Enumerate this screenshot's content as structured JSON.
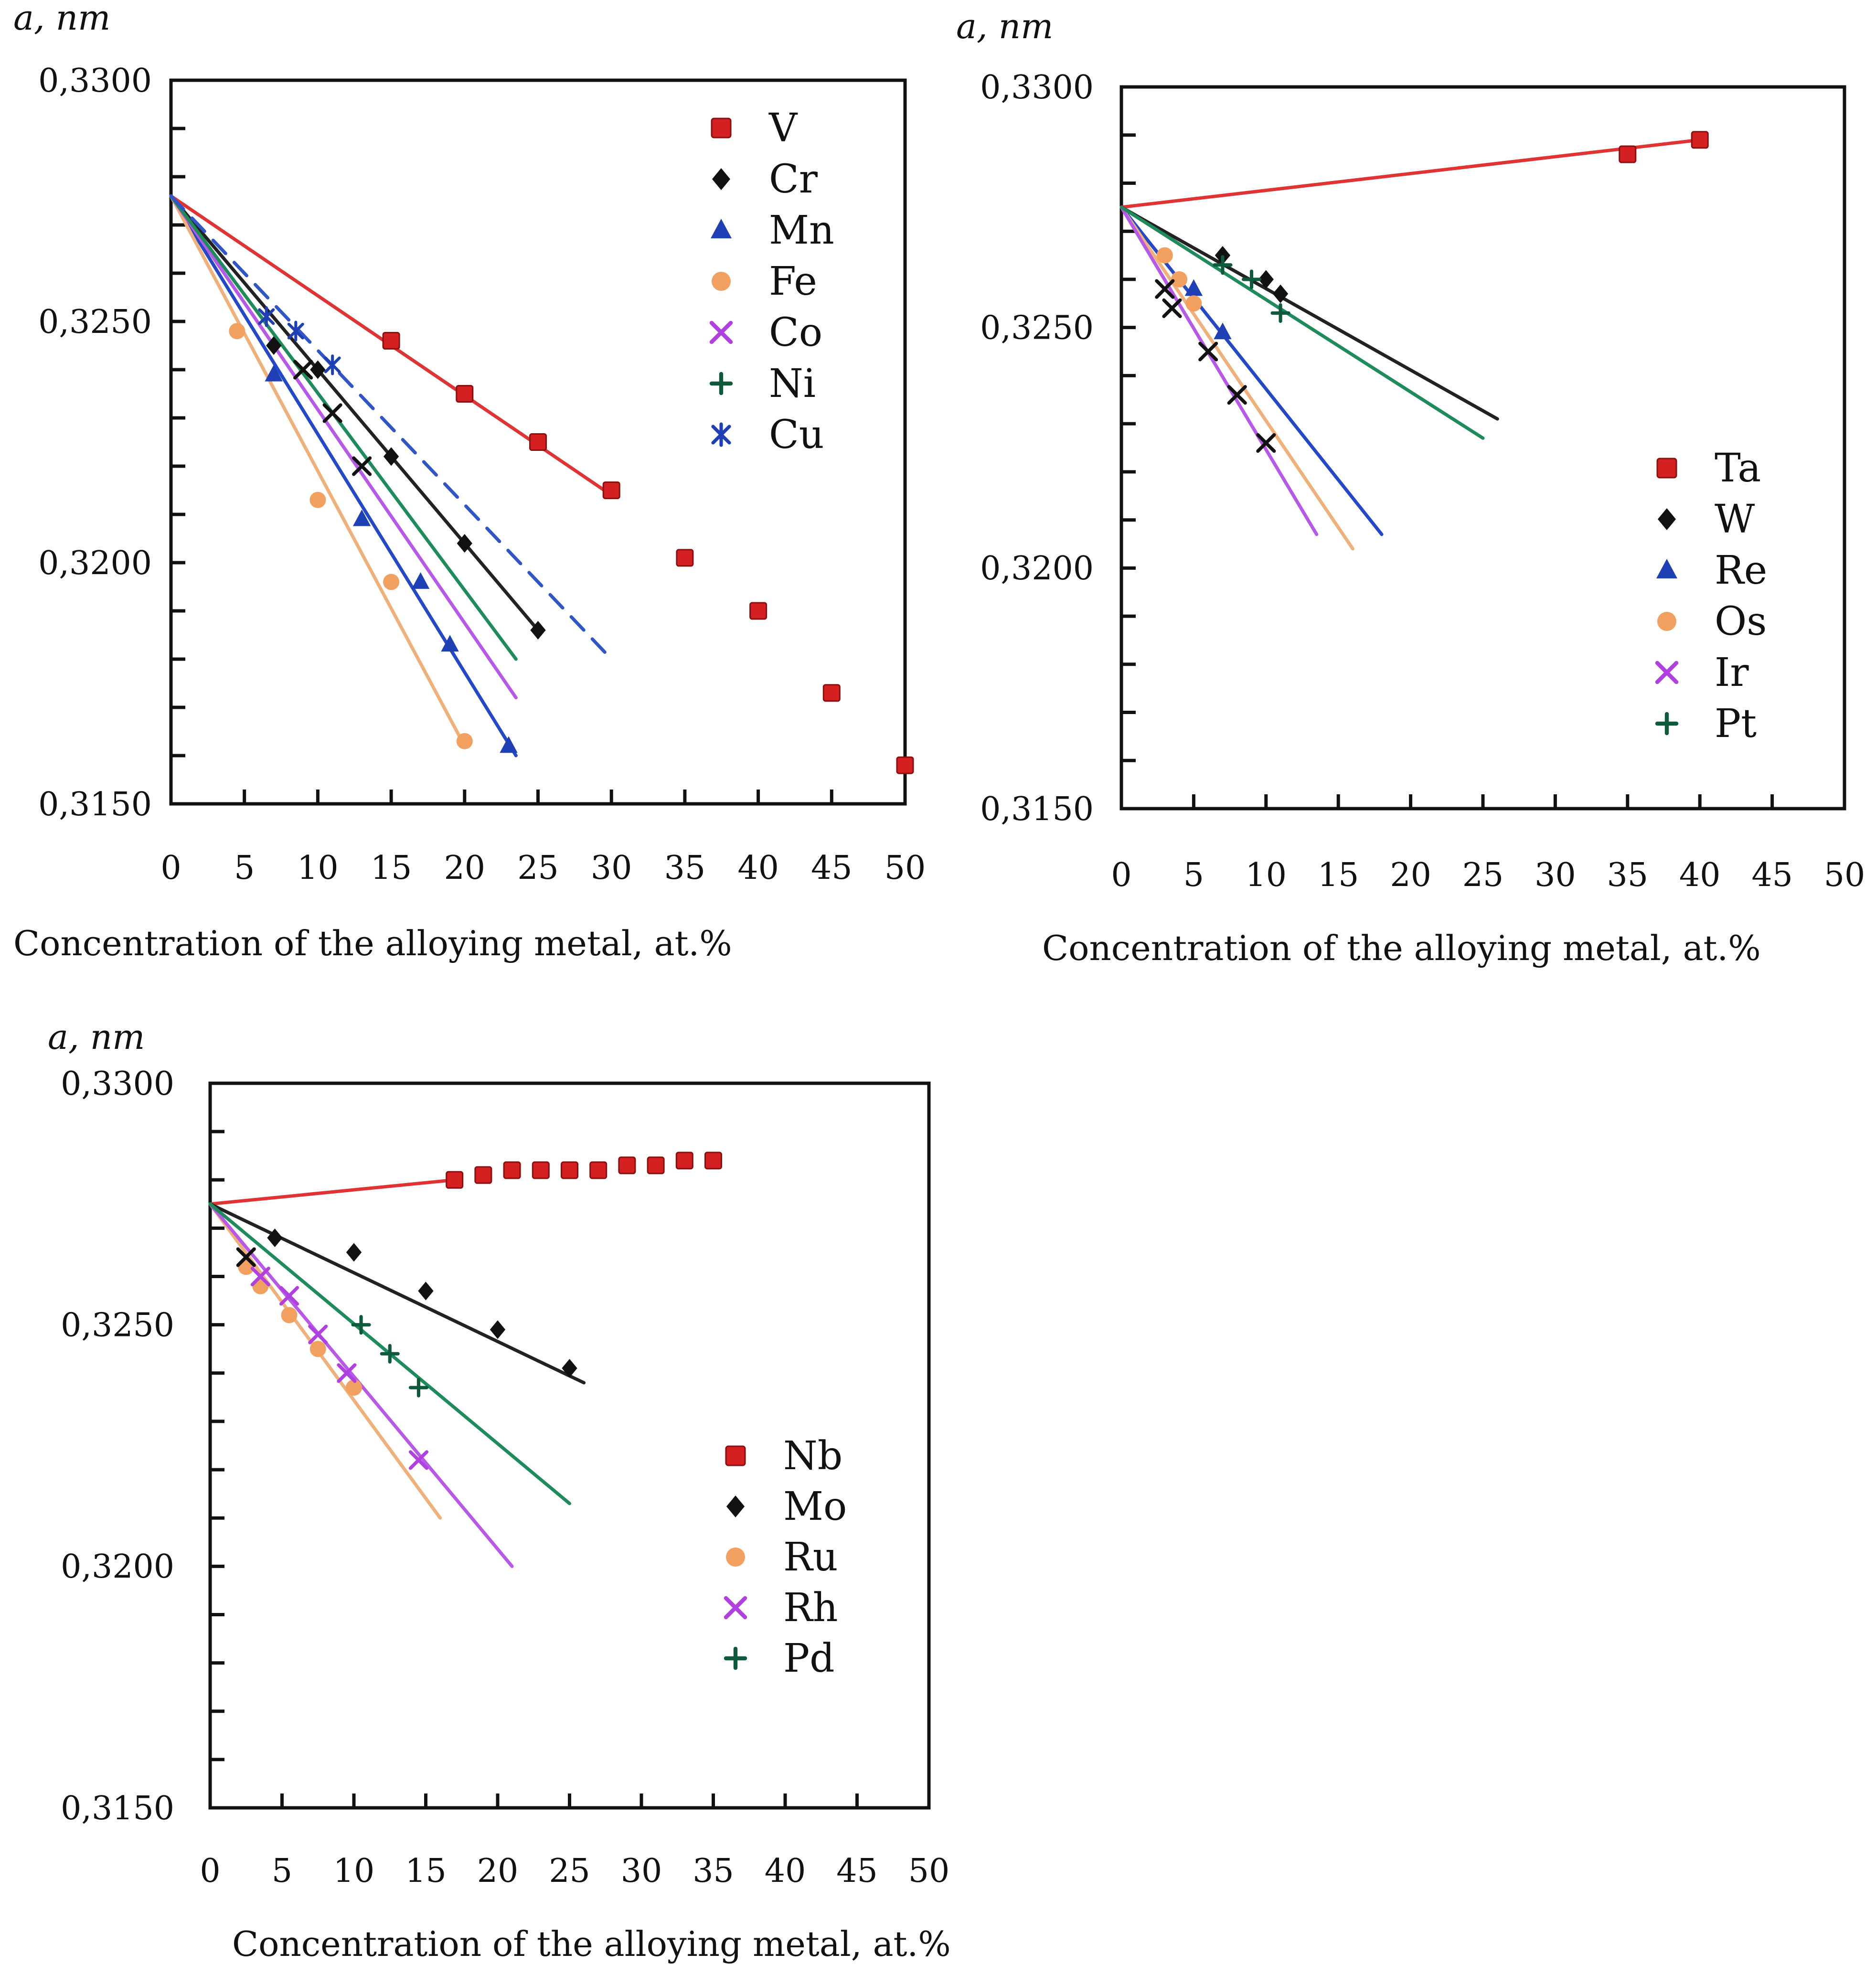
{
  "chart_data": [
    {
      "type": "scatter",
      "panel": "top-left",
      "ylabel": "a, nm",
      "xlabel": "Concentration of the alloying metal, at.%",
      "xlim": [
        0,
        50
      ],
      "ylim": [
        0.315,
        0.33
      ],
      "x_ticks": [
        0,
        5,
        10,
        15,
        20,
        25,
        30,
        35,
        40,
        45,
        50
      ],
      "x_tick_labels": [
        "0",
        "5",
        "10",
        "15",
        "20",
        "25",
        "30",
        "35",
        "40",
        "45",
        "50"
      ],
      "y_tick_values": [
        0.315,
        0.32,
        0.325,
        0.33
      ],
      "y_tick_labels": [
        "0,3150",
        "0,3200",
        "0,3250",
        "0,3300"
      ],
      "y_minor_step": 0.001,
      "legend_position": "top-right",
      "series": [
        {
          "name": "V",
          "marker": "square",
          "color": "#d42020",
          "line_color": "#e03434",
          "line": [
            [
              0,
              0.3276
            ],
            [
              30,
              0.3214
            ]
          ],
          "x": [
            15,
            20,
            25,
            30,
            35,
            40,
            45,
            50
          ],
          "y": [
            0.3246,
            0.3235,
            0.3225,
            0.3215,
            0.3201,
            0.319,
            0.3173,
            0.3158
          ]
        },
        {
          "name": "Cr",
          "marker": "diamond",
          "color": "#111111",
          "line_color": "#222222",
          "line": [
            [
              0,
              0.3276
            ],
            [
              25,
              0.3186
            ]
          ],
          "x": [
            7,
            10,
            15,
            20,
            25
          ],
          "y": [
            0.3245,
            0.324,
            0.3222,
            0.3204,
            0.3186
          ]
        },
        {
          "name": "Mn",
          "marker": "triangle",
          "color": "#1f3fb4",
          "line_color": "#2348c8",
          "line": [
            [
              0,
              0.3276
            ],
            [
              23.5,
              0.316
            ]
          ],
          "x": [
            7,
            13,
            17,
            19,
            23
          ],
          "y": [
            0.3239,
            0.3209,
            0.3196,
            0.3183,
            0.3162
          ]
        },
        {
          "name": "Fe",
          "marker": "circle",
          "color": "#f2a060",
          "line_color": "#f0b07a",
          "line": [
            [
              0,
              0.3276
            ],
            [
              20,
              0.3162
            ]
          ],
          "x": [
            4.5,
            10,
            15,
            20
          ],
          "y": [
            0.3248,
            0.3213,
            0.3196,
            0.3163
          ]
        },
        {
          "name": "Co",
          "marker": "x",
          "color": "#b040e0",
          "line_color": "#b858e8",
          "line": [
            [
              0,
              0.3276
            ],
            [
              23.5,
              0.3172
            ]
          ],
          "x": [],
          "y": []
        },
        {
          "name": "Ni",
          "marker": "plus",
          "color": "#0e5a3a",
          "line_color": "#1e8c5a",
          "line": [
            [
              0,
              0.3276
            ],
            [
              23.5,
              0.318
            ]
          ],
          "x": [],
          "y": []
        },
        {
          "name": "Cu",
          "marker": "asterisk",
          "color": "#1f3fb4",
          "line_color": "#2f55c8",
          "line_dash": "dashed",
          "line": [
            [
              0,
              0.3276
            ],
            [
              30,
              0.318
            ]
          ],
          "x": [
            6.5,
            8.5,
            11
          ],
          "y": [
            0.3251,
            0.3248,
            0.3241
          ]
        },
        {
          "name": "",
          "marker": "x",
          "color": "#111111",
          "x": [
            9,
            11,
            13
          ],
          "y": [
            0.324,
            0.3231,
            0.322
          ]
        }
      ]
    },
    {
      "type": "scatter",
      "panel": "top-right",
      "ylabel": "a, nm",
      "xlabel": "Concentration of the alloying metal, at.%",
      "xlim": [
        0,
        50
      ],
      "ylim": [
        0.315,
        0.33
      ],
      "x_ticks": [
        0,
        5,
        10,
        15,
        20,
        25,
        30,
        35,
        40,
        45,
        50
      ],
      "x_tick_labels": [
        "0",
        "5",
        "10",
        "15",
        "20",
        "25",
        "30",
        "35",
        "40",
        "45",
        "50"
      ],
      "y_tick_values": [
        0.315,
        0.32,
        0.325,
        0.33
      ],
      "y_tick_labels": [
        "0,3150",
        "0,3200",
        "0,3250",
        "0,3300"
      ],
      "y_minor_step": 0.001,
      "legend_position": "middle-right",
      "series": [
        {
          "name": "Ta",
          "marker": "square",
          "color": "#d42020",
          "line_color": "#e03434",
          "line": [
            [
              0,
              0.3275
            ],
            [
              40,
              0.3289
            ]
          ],
          "x": [
            35,
            40
          ],
          "y": [
            0.3286,
            0.3289
          ]
        },
        {
          "name": "W",
          "marker": "diamond",
          "color": "#111111",
          "line_color": "#222222",
          "line": [
            [
              0,
              0.3275
            ],
            [
              26,
              0.3231
            ]
          ],
          "x": [
            7,
            10,
            11
          ],
          "y": [
            0.3265,
            0.326,
            0.3257
          ]
        },
        {
          "name": "Re",
          "marker": "triangle",
          "color": "#1f3fb4",
          "line_color": "#2348c8",
          "line": [
            [
              0,
              0.3275
            ],
            [
              18,
              0.3207
            ]
          ],
          "x": [
            5,
            7
          ],
          "y": [
            0.3258,
            0.3249
          ]
        },
        {
          "name": "Os",
          "marker": "circle",
          "color": "#f2a060",
          "line_color": "#f0b07a",
          "line": [
            [
              0,
              0.3275
            ],
            [
              16,
              0.3204
            ]
          ],
          "x": [
            3,
            4,
            5
          ],
          "y": [
            0.3265,
            0.326,
            0.3255
          ]
        },
        {
          "name": "Ir",
          "marker": "x",
          "color": "#b040e0",
          "line_color": "#b858e8",
          "line": [
            [
              0,
              0.3275
            ],
            [
              13.5,
              0.3207
            ]
          ],
          "x": [],
          "y": []
        },
        {
          "name": "Pt",
          "marker": "plus",
          "color": "#0e5a3a",
          "line_color": "#1e8c5a",
          "line": [
            [
              0,
              0.3275
            ],
            [
              25,
              0.3227
            ]
          ],
          "x": [
            7,
            9,
            11
          ],
          "y": [
            0.3263,
            0.326,
            0.3253
          ]
        },
        {
          "name": "",
          "marker": "x",
          "color": "#111111",
          "x": [
            3,
            3.5,
            6,
            8,
            10
          ],
          "y": [
            0.3258,
            0.3254,
            0.3245,
            0.3236,
            0.3226
          ]
        }
      ]
    },
    {
      "type": "scatter",
      "panel": "bottom-left",
      "ylabel": "a, nm",
      "xlabel": "Concentration of the alloying metal, at.%",
      "xlim": [
        0,
        50
      ],
      "ylim": [
        0.315,
        0.33
      ],
      "x_ticks": [
        0,
        5,
        10,
        15,
        20,
        25,
        30,
        35,
        40,
        45,
        50
      ],
      "x_tick_labels": [
        "0",
        "5",
        "10",
        "15",
        "20",
        "25",
        "30",
        "35",
        "40",
        "45",
        "50"
      ],
      "y_tick_values": [
        0.315,
        0.32,
        0.325,
        0.33
      ],
      "y_tick_labels": [
        "0,3150",
        "0,3200",
        "0,3250",
        "0,3300"
      ],
      "y_minor_step": 0.001,
      "legend_position": "bottom-right",
      "series": [
        {
          "name": "Nb",
          "marker": "square",
          "color": "#d42020",
          "line_color": "#e03434",
          "line": [
            [
              0,
              0.3275
            ],
            [
              17,
              0.328
            ]
          ],
          "x": [
            17,
            19,
            21,
            23,
            25,
            27,
            29,
            31,
            33,
            35
          ],
          "y": [
            0.328,
            0.3281,
            0.3282,
            0.3282,
            0.3282,
            0.3282,
            0.3283,
            0.3283,
            0.3284,
            0.3284
          ]
        },
        {
          "name": "Mo",
          "marker": "diamond",
          "color": "#111111",
          "line_color": "#222222",
          "line": [
            [
              0,
              0.3275
            ],
            [
              26,
              0.3238
            ]
          ],
          "x": [
            4.5,
            10,
            15,
            20,
            25
          ],
          "y": [
            0.3268,
            0.3265,
            0.3257,
            0.3249,
            0.3241
          ]
        },
        {
          "name": "Ru",
          "marker": "circle",
          "color": "#f2a060",
          "line_color": "#f0b07a",
          "line": [
            [
              0,
              0.3275
            ],
            [
              16,
              0.321
            ]
          ],
          "x": [
            2.5,
            3.5,
            5.5,
            7.5,
            10
          ],
          "y": [
            0.3262,
            0.3258,
            0.3252,
            0.3245,
            0.3237
          ]
        },
        {
          "name": "Rh",
          "marker": "x",
          "color": "#b040e0",
          "line_color": "#b858e8",
          "line": [
            [
              0,
              0.3275
            ],
            [
              21,
              0.32
            ]
          ],
          "x": [
            3.5,
            5.5,
            7.5,
            9.5,
            14.5
          ],
          "y": [
            0.326,
            0.3256,
            0.3248,
            0.324,
            0.3222
          ]
        },
        {
          "name": "Pd",
          "marker": "plus",
          "color": "#0e5a3a",
          "line_color": "#1e8c5a",
          "line": [
            [
              0,
              0.3275
            ],
            [
              25,
              0.3213
            ]
          ],
          "x": [
            10.5,
            12.5,
            14.5
          ],
          "y": [
            0.325,
            0.3244,
            0.3237
          ]
        },
        {
          "name": "",
          "marker": "x",
          "color": "#111111",
          "x": [
            2.5
          ],
          "y": [
            0.3264
          ]
        }
      ]
    }
  ]
}
